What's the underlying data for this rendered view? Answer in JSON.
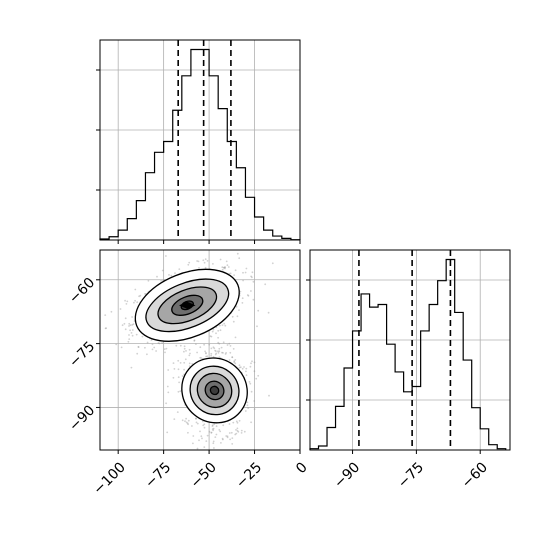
{
  "chart_data": {
    "type": "corner",
    "parameters": [
      {
        "name": "",
        "histogram_range": [
          -110,
          0
        ],
        "quantiles": [
          -67,
          -53,
          -38
        ]
      },
      {
        "name": "",
        "histogram_range": [
          -100,
          -53
        ],
        "quantiles": [
          -88.5,
          -76,
          -67
        ]
      }
    ],
    "panels": [
      {
        "type": "histogram",
        "position": "top-left",
        "bins": [
          -110,
          -105,
          -100,
          -95,
          -90,
          -85,
          -80,
          -75,
          -70,
          -65,
          -60,
          -55,
          -50,
          -45,
          -40,
          -35,
          -30,
          -25,
          -20,
          -15,
          -10,
          -5,
          0
        ],
        "counts": [
          0.3,
          1.0,
          3.0,
          6.5,
          12.0,
          20.5,
          26.7,
          30.0,
          39.5,
          50.0,
          58.0,
          58.0,
          50.0,
          40.0,
          30.0,
          22.0,
          13.0,
          7.0,
          3.0,
          1.2,
          0.5,
          0.1
        ],
        "quantiles": [
          -67,
          -53,
          -38
        ]
      },
      {
        "type": "histogram",
        "position": "bottom-right",
        "bins": [
          -100,
          -98,
          -96,
          -94,
          -92,
          -90,
          -88,
          -86,
          -84,
          -82,
          -80,
          -78,
          -76,
          -74,
          -72,
          -70,
          -68,
          -66,
          -64,
          -62,
          -60,
          -58,
          -56,
          -54
        ],
        "counts": [
          0.5,
          1.5,
          8.5,
          16.5,
          31.0,
          45.0,
          59.0,
          54.0,
          55.0,
          40.0,
          29.5,
          22.0,
          24.0,
          45.0,
          55.0,
          64.0,
          72.0,
          52.0,
          34.0,
          16.0,
          8.0,
          2.0,
          0.5
        ],
        "quantiles": [
          -88.5,
          -76,
          -67
        ]
      },
      {
        "type": "2d-density",
        "position": "bottom-left",
        "x_range": [
          -110,
          0
        ],
        "y_range": [
          -100,
          -53
        ],
        "clusters": [
          {
            "center": [
              -62,
              -66
            ],
            "contours": [
              [
                30,
                7.5
              ],
              [
                24,
                5.2
              ],
              [
                17,
                3.6
              ],
              [
                9,
                2.0
              ],
              [
                3.5,
                0.9
              ]
            ],
            "tilt_deg": 22
          },
          {
            "center": [
              -47,
              -86
            ],
            "contours": [
              [
                19,
                12
              ],
              [
                14,
                9
              ],
              [
                10,
                6.3
              ],
              [
                5.5,
                3.4
              ],
              [
                2.5,
                1.5
              ]
            ],
            "tilt_deg": 50
          }
        ]
      }
    ],
    "x_axis_bottom_left": {
      "ticks": [
        -100,
        -75,
        -50,
        -25,
        0
      ],
      "tick_labels": [
        "−100",
        "−75",
        "−50",
        "−25",
        "0"
      ]
    },
    "y_axis_bottom_left": {
      "ticks": [
        -60,
        -75,
        -90
      ],
      "tick_labels": [
        "−60",
        "−75",
        "−90"
      ]
    },
    "x_axis_bottom_right": {
      "ticks": [
        -90,
        -75,
        -60
      ],
      "tick_labels": [
        "−90",
        "−75",
        "−60"
      ]
    },
    "grid": true,
    "colors": {
      "line": "#000000",
      "grid": "#b0b0b0",
      "dashed": "#000000",
      "fill_levels": [
        "#ffffff",
        "#d9d9d9",
        "#a6a6a6",
        "#6e6e6e",
        "#3b3b3b"
      ]
    }
  }
}
